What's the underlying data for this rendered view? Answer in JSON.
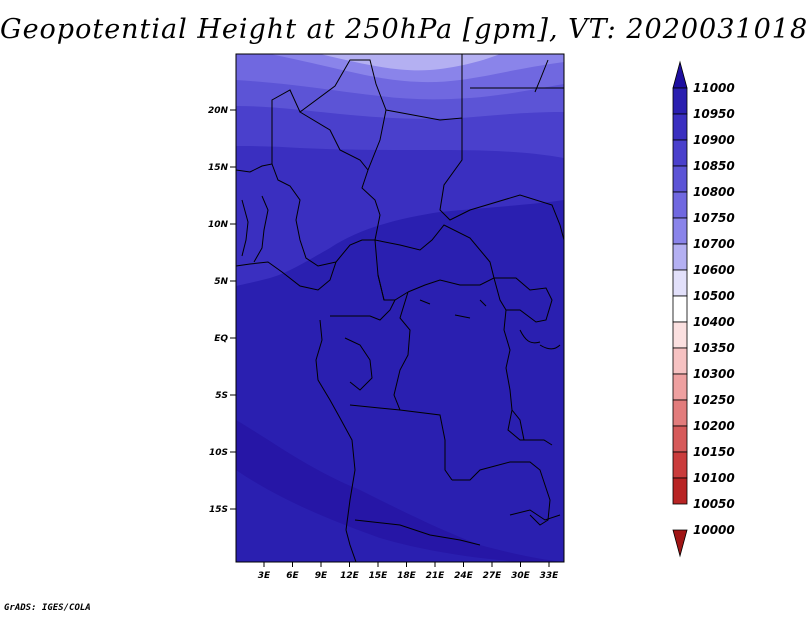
{
  "title": "Geopotential Height at 250hPa [gpm], VT: 2020031018",
  "credit": "GrADS: IGES/COLA",
  "lat_labels": [
    "20N",
    "15N",
    "10N",
    "5N",
    "EQ",
    "5S",
    "10S",
    "15S"
  ],
  "lon_labels": [
    "3E",
    "6E",
    "9E",
    "12E",
    "15E",
    "18E",
    "21E",
    "24E",
    "27E",
    "30E",
    "33E"
  ],
  "colorbar": {
    "levels": [
      "11000",
      "10950",
      "10900",
      "10850",
      "10800",
      "10750",
      "10700",
      "10600",
      "10500",
      "10400",
      "10350",
      "10300",
      "10250",
      "10200",
      "10150",
      "10100",
      "10050",
      "10000"
    ],
    "colors": [
      "#1e0fa0",
      "#2a1fb0",
      "#3a2fc0",
      "#4a40cc",
      "#5c54d6",
      "#7068e0",
      "#8a84ea",
      "#b4b0f2",
      "#e2e0fa",
      "#ffffff",
      "#fbe0e0",
      "#f6c2c2",
      "#eea0a0",
      "#e27c7c",
      "#d65a5a",
      "#ca3c3c",
      "#b82424",
      "#a01414"
    ]
  },
  "chart_data": {
    "type": "heatmap",
    "title": "Geopotential Height at 250hPa [gpm], VT: 2020031018",
    "variable": "geopotential height",
    "level": "250hPa",
    "units": "gpm",
    "valid_time": "2020031018",
    "lon_range": [
      0,
      35
    ],
    "lat_range": [
      -20,
      25
    ],
    "contour_bands_visible": [
      {
        "region": "northern edge (~24N)",
        "range": "10750-10800"
      },
      {
        "region": "~21-23N",
        "range": "10800-10850"
      },
      {
        "region": "~17-21N",
        "range": "10850-10900"
      },
      {
        "region": "~11-17N",
        "range": "10900-10950"
      },
      {
        "region": "south of ~11N to 20S",
        "range": "10950-11000"
      }
    ]
  }
}
